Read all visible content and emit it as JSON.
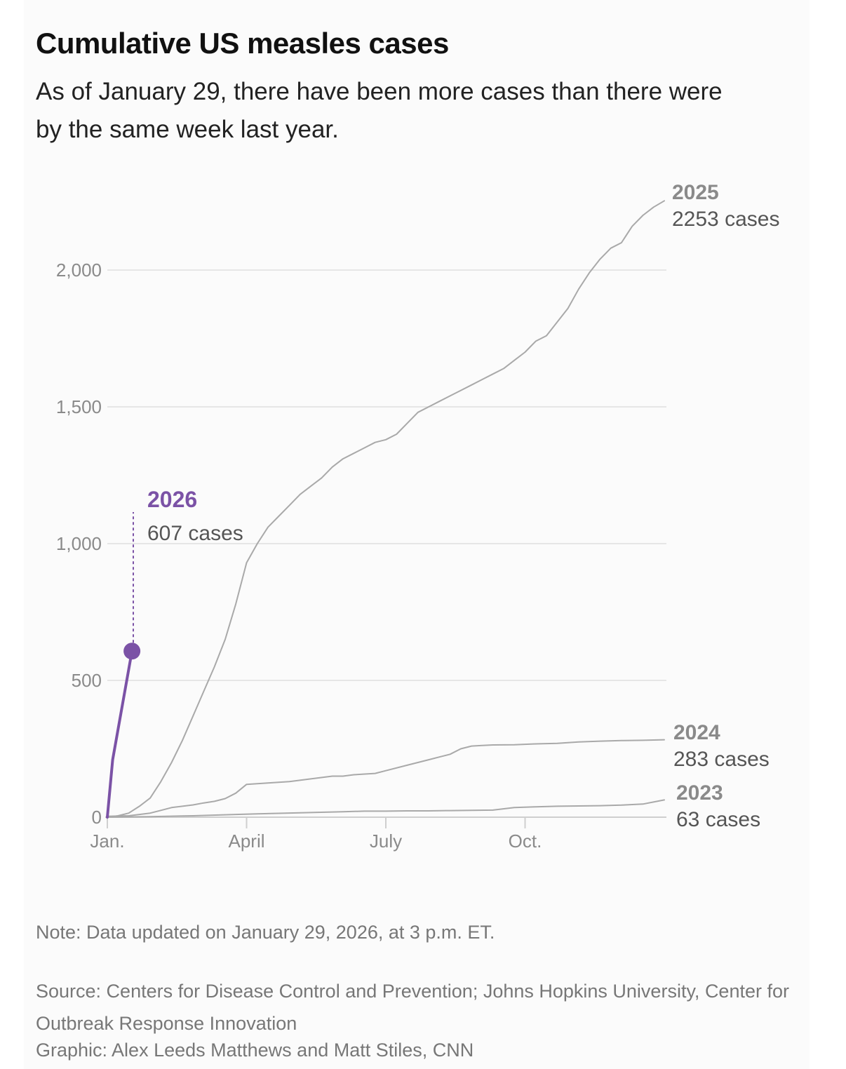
{
  "header": {
    "title": "Cumulative US measles cases",
    "subtitle": "As of January 29, there have been more cases than there were by the same week last year."
  },
  "footer": {
    "note": "Note: Data updated on January 29, 2026, at 3 p.m. ET.",
    "source": "Source: Centers for Disease Control and Prevention; Johns Hopkins University, Center for Outbreak Response Innovation",
    "credit": "Graphic: Alex Leeds Matthews and Matt Stiles, CNN"
  },
  "colors": {
    "highlight": "#7b52a6",
    "past_years": "#a9a9a9",
    "gridline": "#e6e6e6",
    "axis_text": "#8a8a8a",
    "label_year": "#8a8a8a",
    "label_cases": "#555555"
  },
  "chart_data": {
    "type": "line",
    "x_unit": "week of year",
    "x_range": [
      0,
      52
    ],
    "x_ticks": [
      {
        "label": "Jan.",
        "week": 0
      },
      {
        "label": "April",
        "week": 13
      },
      {
        "label": "July",
        "week": 26
      },
      {
        "label": "Oct.",
        "week": 39
      }
    ],
    "y_ticks": [
      {
        "label": "0",
        "value": 0
      },
      {
        "label": "500",
        "value": 500
      },
      {
        "label": "1,000",
        "value": 1000
      },
      {
        "label": "1,500",
        "value": 1500
      },
      {
        "label": "2,000",
        "value": 2000
      }
    ],
    "ylim": [
      0,
      2300
    ],
    "grid": "horizontal",
    "series": [
      {
        "name": "2025",
        "total_label": "2253 cases",
        "highlight": false,
        "x": [
          0,
          1,
          2,
          3,
          4,
          5,
          6,
          7,
          8,
          9,
          10,
          11,
          12,
          13,
          14,
          15,
          16,
          17,
          18,
          19,
          20,
          21,
          22,
          23,
          24,
          25,
          26,
          27,
          28,
          29,
          30,
          31,
          32,
          33,
          34,
          35,
          36,
          37,
          38,
          39,
          40,
          41,
          42,
          43,
          44,
          45,
          46,
          47,
          48,
          49,
          50,
          51,
          52
        ],
        "y": [
          0,
          5,
          15,
          40,
          70,
          130,
          200,
          280,
          370,
          460,
          550,
          650,
          780,
          930,
          1000,
          1060,
          1100,
          1140,
          1180,
          1210,
          1240,
          1280,
          1310,
          1330,
          1350,
          1370,
          1380,
          1400,
          1440,
          1480,
          1500,
          1520,
          1540,
          1560,
          1580,
          1600,
          1620,
          1640,
          1670,
          1700,
          1740,
          1760,
          1810,
          1860,
          1930,
          1990,
          2040,
          2080,
          2100,
          2160,
          2200,
          2230,
          2253
        ]
      },
      {
        "name": "2024",
        "total_label": "283 cases",
        "highlight": false,
        "x": [
          0,
          2,
          4,
          5,
          6,
          8,
          9,
          10,
          11,
          12,
          13,
          15,
          17,
          19,
          21,
          22,
          23,
          25,
          26,
          28,
          29,
          30,
          31,
          32,
          33,
          34,
          35,
          36,
          38,
          40,
          42,
          44,
          46,
          48,
          50,
          52
        ],
        "y": [
          3,
          5,
          15,
          25,
          35,
          45,
          52,
          58,
          68,
          88,
          120,
          125,
          130,
          140,
          150,
          150,
          155,
          160,
          170,
          190,
          200,
          210,
          220,
          230,
          250,
          260,
          262,
          264,
          265,
          268,
          270,
          275,
          278,
          280,
          281,
          283
        ]
      },
      {
        "name": "2023",
        "total_label": "63 cases",
        "highlight": false,
        "x": [
          0,
          4,
          8,
          12,
          14,
          16,
          18,
          20,
          22,
          24,
          26,
          28,
          30,
          32,
          34,
          36,
          38,
          40,
          42,
          44,
          46,
          48,
          50,
          52
        ],
        "y": [
          0,
          2,
          5,
          10,
          12,
          14,
          16,
          18,
          20,
          22,
          22,
          23,
          23,
          24,
          25,
          26,
          35,
          38,
          40,
          41,
          42,
          44,
          48,
          63
        ]
      },
      {
        "name": "2026",
        "total_label": "607 cases",
        "highlight": true,
        "x": [
          0,
          0.5,
          2.3
        ],
        "y": [
          0,
          210,
          607
        ]
      }
    ]
  }
}
